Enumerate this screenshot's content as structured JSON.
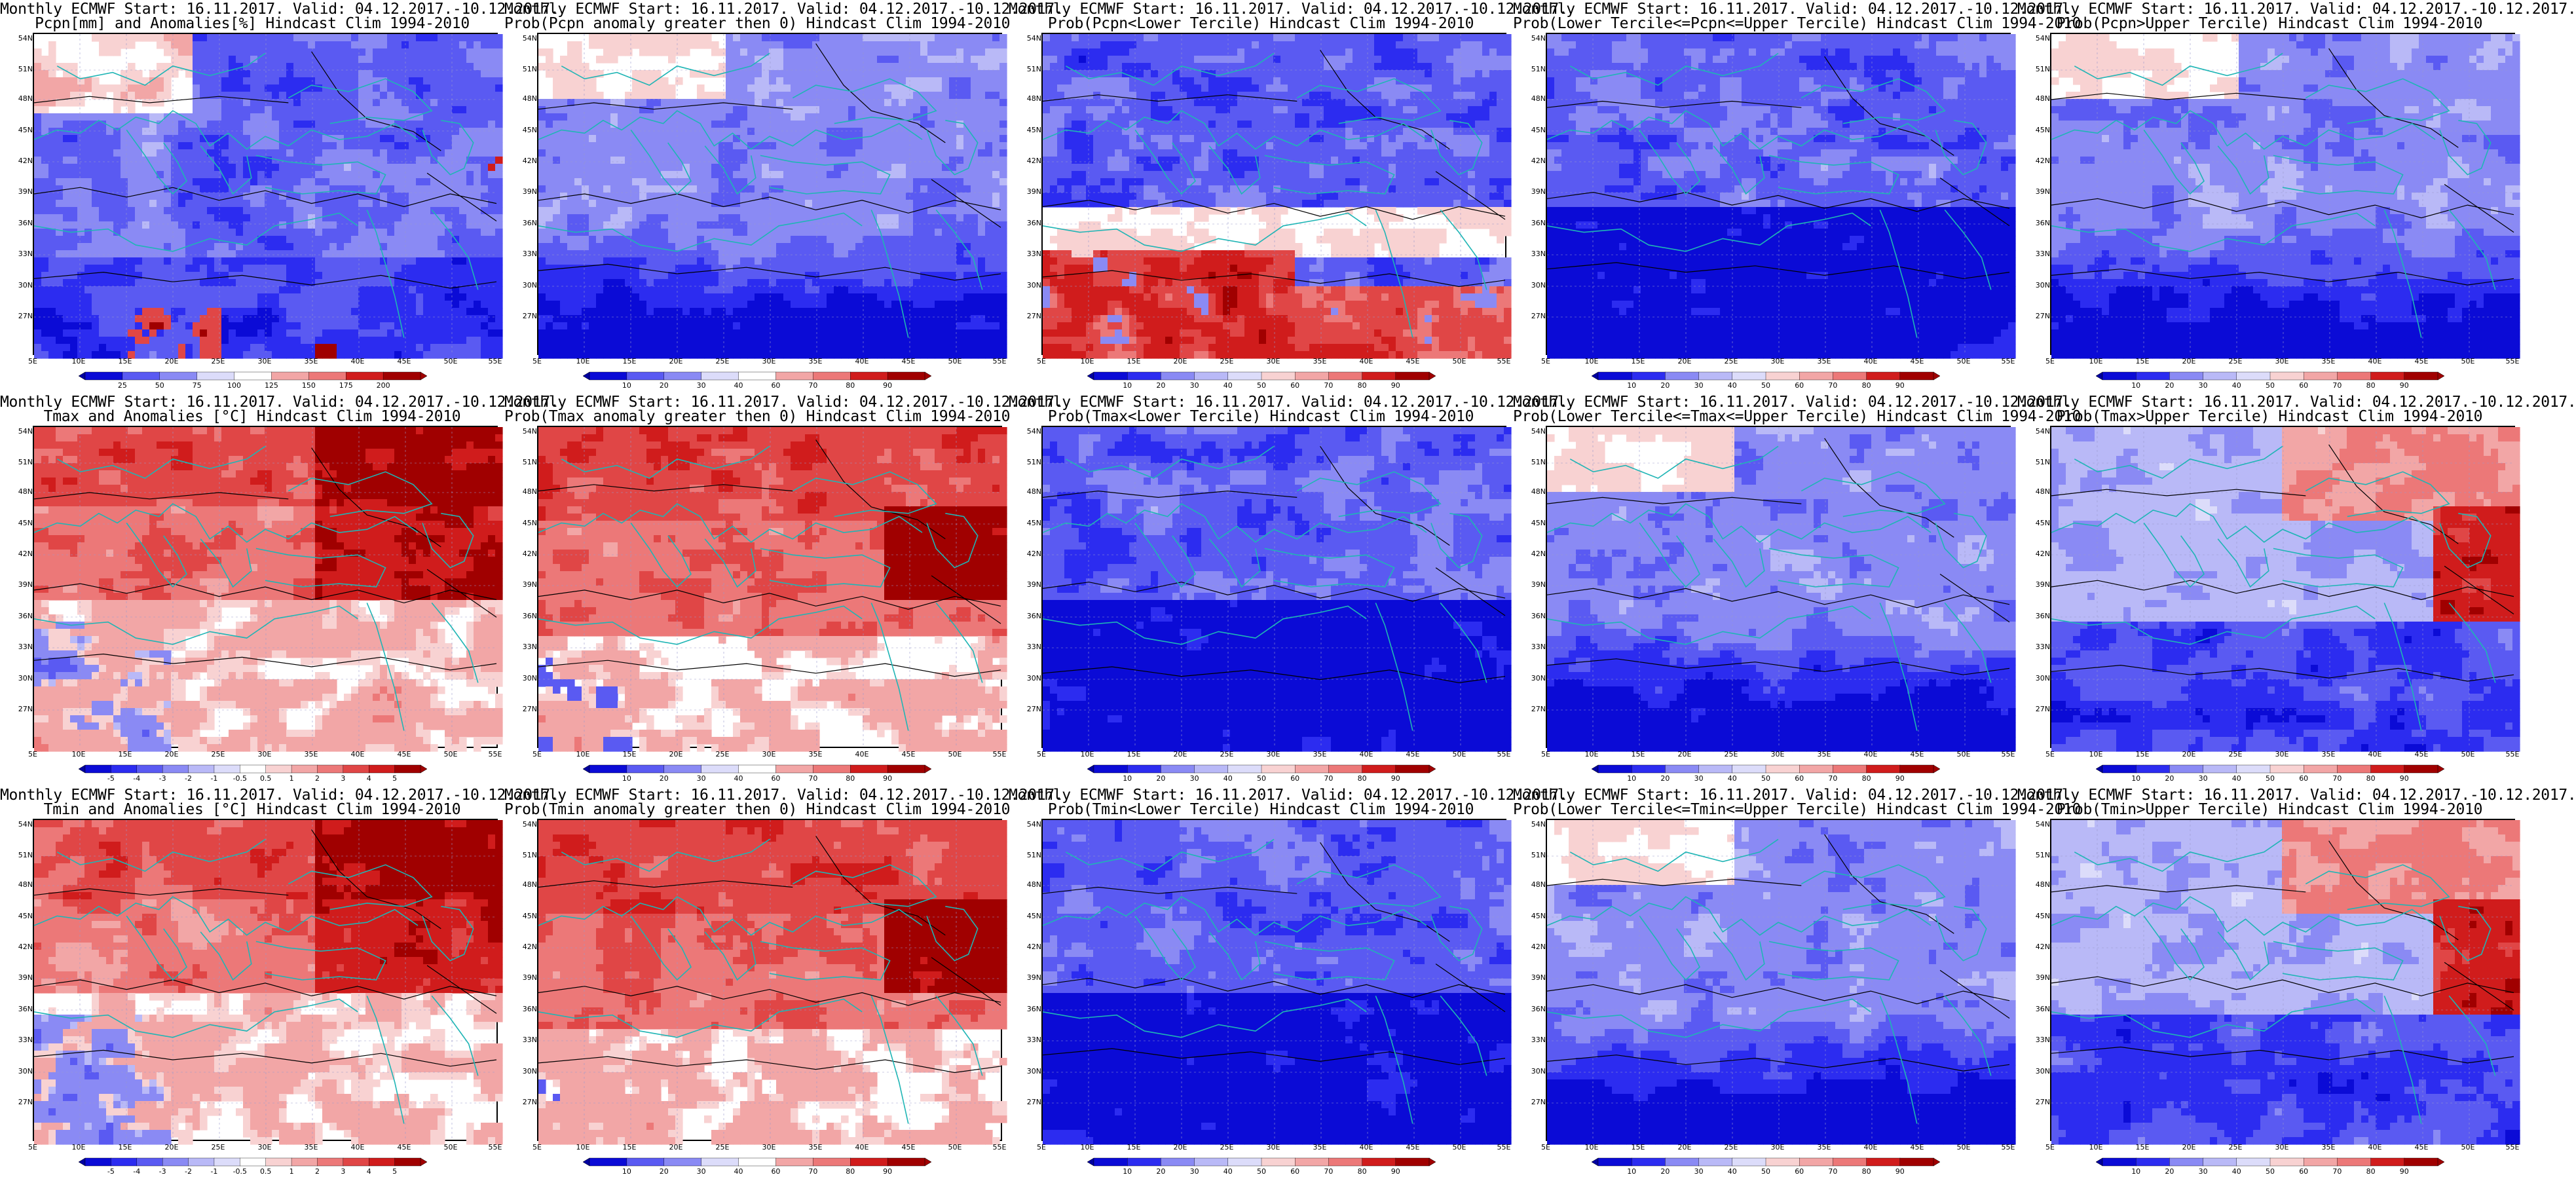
{
  "panels": [
    {
      "title1": "Monthly ECMWF Start: 16.11.2017. Valid: 04.12.2017.-10.12.2017.",
      "title2": "Pcpn[mm] and Anomalies[%] Hindcast Clim 1994-2010",
      "style": "prec_anom",
      "colorbar": [
        "25",
        "50",
        "75",
        "100",
        "125",
        "150",
        "175",
        "200"
      ],
      "row": 0,
      "col": 0
    },
    {
      "title1": "Monthly ECMWF Start: 16.11.2017. Valid: 04.12.2017.-10.12.2017.",
      "title2": "Prob(Pcpn anomaly greater then 0) Hindcast Clim 1994-2010",
      "style": "prob_blue",
      "colorbar": [
        "10",
        "20",
        "30",
        "40",
        "60",
        "70",
        "80",
        "90"
      ],
      "row": 0,
      "col": 1
    },
    {
      "title1": "Monthly ECMWF Start: 16.11.2017. Valid: 04.12.2017.-10.12.2017.",
      "title2": "Prob(Pcpn<Lower Tercile) Hindcast Clim 1994-2010",
      "style": "prob_mixed_red_south",
      "colorbar": [
        "10",
        "20",
        "30",
        "40",
        "50",
        "60",
        "70",
        "80",
        "90"
      ],
      "row": 0,
      "col": 2
    },
    {
      "title1": "Monthly ECMWF Start: 16.11.2017. Valid: 04.12.2017.-10.12.2017.",
      "title2": "Prob(Lower Tercile<=Pcpn<=Upper Tercile) Hindcast Clim 1994-2010",
      "style": "prob_blue_deep",
      "colorbar": [
        "10",
        "20",
        "30",
        "40",
        "50",
        "60",
        "70",
        "80",
        "90"
      ],
      "row": 0,
      "col": 3
    },
    {
      "title1": "Monthly ECMWF Start: 16.11.2017. Valid: 04.12.2017.-10.12.2017.",
      "title2": "Prob(Pcpn>Upper Tercile) Hindcast Clim 1994-2010",
      "style": "prob_blue",
      "colorbar": [
        "10",
        "20",
        "30",
        "40",
        "50",
        "60",
        "70",
        "80",
        "90"
      ],
      "row": 0,
      "col": 4
    },
    {
      "title1": "Monthly ECMWF Start: 16.11.2017. Valid: 04.12.2017.-10.12.2017.",
      "title2": "Tmax and Anomalies [°C] Hindcast Clim 1994-2010",
      "style": "temp_warm",
      "colorbar": [
        "-5",
        "-4",
        "-3",
        "-2",
        "-1",
        "-0.5",
        "0.5",
        "1",
        "2",
        "3",
        "4",
        "5"
      ],
      "row": 1,
      "col": 0
    },
    {
      "title1": "Monthly ECMWF Start: 16.11.2017. Valid: 04.12.2017.-10.12.2017.",
      "title2": "Prob(Tmax anomaly greater then 0) Hindcast Clim 1994-2010",
      "style": "prob_red",
      "colorbar": [
        "10",
        "20",
        "30",
        "40",
        "60",
        "70",
        "80",
        "90"
      ],
      "row": 1,
      "col": 1
    },
    {
      "title1": "Monthly ECMWF Start: 16.11.2017. Valid: 04.12.2017.-10.12.2017.",
      "title2": "Prob(Tmax<Lower Tercile) Hindcast Clim 1994-2010",
      "style": "prob_blue_deep",
      "colorbar": [
        "10",
        "20",
        "30",
        "40",
        "50",
        "60",
        "70",
        "80",
        "90"
      ],
      "row": 1,
      "col": 2
    },
    {
      "title1": "Monthly ECMWF Start: 16.11.2017. Valid: 04.12.2017.-10.12.2017.",
      "title2": "Prob(Lower Tercile<=Tmax<=Upper Tercile) Hindcast Clim 1994-2010",
      "style": "prob_blue",
      "colorbar": [
        "10",
        "20",
        "30",
        "40",
        "50",
        "60",
        "70",
        "80",
        "90"
      ],
      "row": 1,
      "col": 3
    },
    {
      "title1": "Monthly ECMWF Start: 16.11.2017. Valid: 04.12.2017.-10.12.2017.",
      "title2": "Prob(Tmax>Upper Tercile) Hindcast Clim 1994-2010",
      "style": "prob_red_ne_blue_s",
      "colorbar": [
        "10",
        "20",
        "30",
        "40",
        "50",
        "60",
        "70",
        "80",
        "90"
      ],
      "row": 1,
      "col": 4
    },
    {
      "title1": "Monthly ECMWF Start: 16.11.2017. Valid: 04.12.2017.-10.12.2017.",
      "title2": "Tmin and Anomalies [°C] Hindcast Clim 1994-2010",
      "style": "temp_warm",
      "colorbar": [
        "-5",
        "-4",
        "-3",
        "-2",
        "-1",
        "-0.5",
        "0.5",
        "1",
        "2",
        "3",
        "4",
        "5"
      ],
      "row": 2,
      "col": 0
    },
    {
      "title1": "Monthly ECMWF Start: 16.11.2017. Valid: 04.12.2017.-10.12.2017.",
      "title2": "Prob(Tmin anomaly greater then 0) Hindcast Clim 1994-2010",
      "style": "prob_red",
      "colorbar": [
        "10",
        "20",
        "30",
        "40",
        "60",
        "70",
        "80",
        "90"
      ],
      "row": 2,
      "col": 1
    },
    {
      "title1": "Monthly ECMWF Start: 16.11.2017. Valid: 04.12.2017.-10.12.2017.",
      "title2": "Prob(Tmin<Lower Tercile) Hindcast Clim 1994-2010",
      "style": "prob_blue_deep",
      "colorbar": [
        "10",
        "20",
        "30",
        "40",
        "50",
        "60",
        "70",
        "80",
        "90"
      ],
      "row": 2,
      "col": 2
    },
    {
      "title1": "Monthly ECMWF Start: 16.11.2017. Valid: 04.12.2017.-10.12.2017.",
      "title2": "Prob(Lower Tercile<=Tmin<=Upper Tercile) Hindcast Clim 1994-2010",
      "style": "prob_blue",
      "colorbar": [
        "10",
        "20",
        "30",
        "40",
        "50",
        "60",
        "70",
        "80",
        "90"
      ],
      "row": 2,
      "col": 3
    },
    {
      "title1": "Monthly ECMWF Start: 16.11.2017. Valid: 04.12.2017.-10.12.2017.",
      "title2": "Prob(Tmin>Upper Tercile) Hindcast Clim 1994-2010",
      "style": "prob_red_ne_blue_s",
      "colorbar": [
        "10",
        "20",
        "30",
        "40",
        "50",
        "60",
        "70",
        "80",
        "90"
      ],
      "row": 2,
      "col": 4
    }
  ],
  "lat_labels": [
    "54N",
    "51N",
    "48N",
    "45N",
    "42N",
    "39N",
    "36N",
    "33N",
    "30N",
    "27N"
  ],
  "lon_labels": [
    "5E",
    "10E",
    "15E",
    "20E",
    "25E",
    "30E",
    "35E",
    "40E",
    "45E",
    "50E",
    "55E"
  ],
  "colors": {
    "coast": "#1fb5b5",
    "contour": "#000000",
    "blue_scale": [
      "#0b0bd6",
      "#2c2cf0",
      "#5a5af2",
      "#8a8af4",
      "#b9b9f7",
      "#dcdcfa",
      "#ffffff"
    ],
    "red_scale": [
      "#ffffff",
      "#f8d2d2",
      "#f2a6a6",
      "#ec7878",
      "#e04646",
      "#d01c1c",
      "#a00000"
    ]
  }
}
